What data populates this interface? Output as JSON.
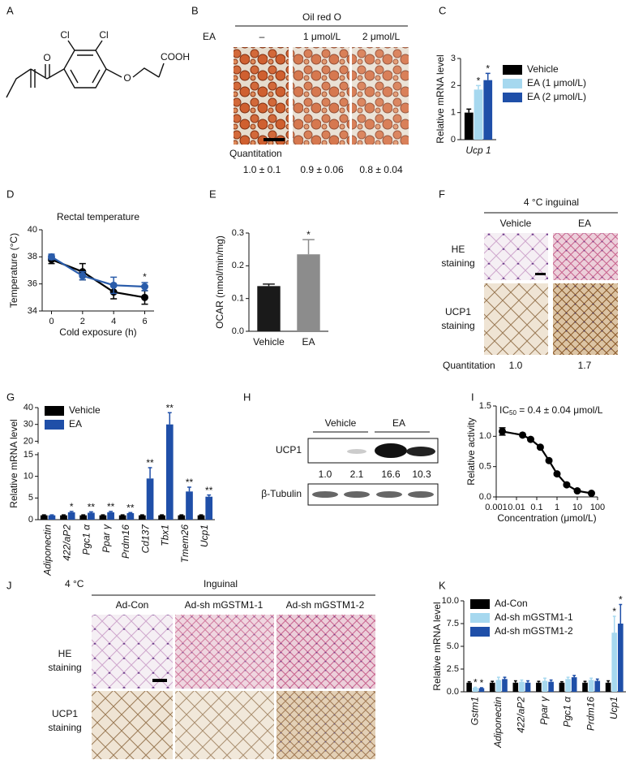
{
  "figure": {
    "letters": [
      "A",
      "B",
      "C",
      "D",
      "E",
      "F",
      "G",
      "H",
      "I",
      "J",
      "K"
    ],
    "A": {
      "atoms": [
        "O",
        "Cl",
        "Cl",
        "O",
        "COOH"
      ]
    },
    "B": {
      "header": "Oil red O",
      "row_label": "EA",
      "columns": [
        "–",
        "1 μmol/L",
        "2 μmol/L"
      ],
      "quant_label": "Quantitation",
      "quant": [
        "1.0 ± 0.1",
        "0.9 ± 0.06",
        "0.8 ± 0.04"
      ]
    },
    "F": {
      "header": "4 °C inguinal",
      "columns": [
        "Vehicle",
        "EA"
      ],
      "rows": [
        [
          "HE",
          "staining"
        ],
        [
          "UCP1",
          "staining"
        ]
      ],
      "quant_label": "Quantitation",
      "quant": [
        "1.0",
        "1.7"
      ]
    },
    "H": {
      "groups": [
        "Vehicle",
        "EA"
      ],
      "rows": [
        "UCP1",
        "β-Tubulin"
      ],
      "quant": [
        "1.0",
        "2.1",
        "16.6",
        "10.3"
      ]
    },
    "J": {
      "condition": "4 °C",
      "header": "Inguinal",
      "columns": [
        "Ad-Con",
        "Ad-sh mGSTM1-1",
        "Ad-sh mGSTM1-2"
      ],
      "rows": [
        [
          "HE",
          "staining"
        ],
        [
          "UCP1",
          "staining"
        ]
      ]
    }
  },
  "chart_data": [
    {
      "type": "bar",
      "ylabel": "Relative mRNA level",
      "categories": [
        "Ucp 1"
      ],
      "series": [
        {
          "name": "Vehicle",
          "color": "#000000",
          "values": [
            1.0
          ],
          "errors": [
            0.13
          ]
        },
        {
          "name": "EA (1 μmol/L)",
          "color": "#a6d8ef",
          "values": [
            1.85
          ],
          "errors": [
            0.15
          ],
          "stars": [
            "*"
          ]
        },
        {
          "name": "EA (2 μmol/L)",
          "color": "#1f4fa8",
          "values": [
            2.2
          ],
          "errors": [
            0.25
          ],
          "stars": [
            "*"
          ]
        }
      ],
      "ylim": [
        0,
        3
      ],
      "yticks": [
        0,
        1,
        2,
        3
      ],
      "legend": "right"
    },
    {
      "type": "line",
      "title": "Rectal temperature",
      "xlabel": "Cold exposure (h)",
      "ylabel": "Temperature (°C)",
      "x": [
        0,
        2,
        4,
        6
      ],
      "series": [
        {
          "color": "#000000",
          "values": [
            37.8,
            36.9,
            35.4,
            35.0
          ],
          "errors": [
            0.3,
            0.6,
            0.5,
            0.5
          ]
        },
        {
          "color": "#2a5caa",
          "values": [
            38.0,
            36.6,
            35.9,
            35.8
          ],
          "errors": [
            0.2,
            0.3,
            0.6,
            0.3
          ],
          "stars": [
            null,
            null,
            null,
            "*"
          ]
        }
      ],
      "xlim": [
        -0.6,
        6.6
      ],
      "xticks": [
        0,
        2,
        4,
        6
      ],
      "ylim": [
        34,
        40
      ],
      "yticks": [
        34,
        36,
        38,
        40
      ]
    },
    {
      "type": "bar",
      "ylabel": "OCAR (nmol/min/mg)",
      "categories": [
        "Vehicle",
        "EA"
      ],
      "values": [
        0.138,
        0.235
      ],
      "errors": [
        0.006,
        0.045
      ],
      "colors": [
        "#1a1a1a",
        "#8c8c8c"
      ],
      "stars": [
        null,
        "*"
      ],
      "ylim": [
        0,
        0.3
      ],
      "yticks": [
        {
          "value": 0,
          "label": "0.0"
        },
        0.1,
        0.2,
        0.3
      ]
    },
    {
      "type": "bar",
      "ylabel": "Relative mRNA level",
      "categories": [
        "Adiponectin",
        "422/aP2",
        "Pgc1 α",
        "Ppar γ",
        "Prdm16",
        "Cd137",
        "Tbx1",
        "Tmem26",
        "Ucp1"
      ],
      "series": [
        {
          "name": "Vehicle",
          "color": "#000000",
          "values": [
            1,
            1,
            1,
            1,
            1,
            1,
            1,
            1,
            1
          ],
          "errors": [
            0.1,
            0.1,
            0.1,
            0.1,
            0.1,
            0.1,
            0.1,
            0.1,
            0.1
          ]
        },
        {
          "name": "EA",
          "color": "#1f4fa8",
          "values": [
            1.0,
            1.7,
            1.6,
            1.7,
            1.5,
            9.5,
            30,
            6.5,
            5.3
          ],
          "errors": [
            0.1,
            0.2,
            0.2,
            0.2,
            0.15,
            2.5,
            7,
            1,
            0.4
          ],
          "stars": [
            null,
            "*",
            "**",
            "**",
            "**",
            "**",
            "**",
            "**",
            "**"
          ]
        }
      ],
      "ylim": [
        0,
        40
      ],
      "ybreak": [
        15,
        20
      ],
      "yticks": [
        0,
        5,
        10,
        15,
        20,
        30,
        40
      ],
      "legend": "upper left"
    },
    {
      "type": "line",
      "ylabel": "Relative activity",
      "xlabel": "Concentration (μmol/L)",
      "annotation": {
        "text": "IC",
        "sub": "50",
        "rest": " = 0.4 ± 0.04 μmol/L"
      },
      "xlog": true,
      "x": [
        0.002,
        0.02,
        0.05,
        0.15,
        0.4,
        1,
        3,
        10,
        50
      ],
      "values": [
        1.08,
        1.02,
        0.95,
        0.82,
        0.6,
        0.38,
        0.2,
        0.1,
        0.06
      ],
      "errors": [
        0.06,
        0.02,
        0.02,
        0.02,
        0.02,
        0.02,
        0.02,
        0.02,
        0.02
      ],
      "color": "#000000",
      "xlim": [
        0.001,
        100
      ],
      "xticks": [
        0.001,
        0.01,
        0.1,
        1,
        10,
        100
      ],
      "ylim": [
        0,
        1.5
      ],
      "yticks": [
        {
          "value": 0,
          "label": "0.0"
        },
        0.5,
        {
          "value": 1,
          "label": "1.0"
        },
        1.5
      ]
    },
    {
      "type": "bar",
      "ylabel": "Relative mRNA level",
      "categories": [
        "Gstm1",
        "Adiponectin",
        "422/aP2",
        "Ppar γ",
        "Pgc1 α",
        "Prdm16",
        "Ucp1"
      ],
      "series": [
        {
          "name": "Ad-Con",
          "color": "#000000",
          "values": [
            1.0,
            1.0,
            1.0,
            1.0,
            1.0,
            1.0,
            1.0
          ],
          "errors": [
            0.1,
            0.15,
            0.2,
            0.15,
            0.1,
            0.15,
            0.2
          ]
        },
        {
          "name": "Ad-sh mGSTM1-1",
          "color": "#a6d8ef",
          "values": [
            0.45,
            1.3,
            1.1,
            1.2,
            1.4,
            1.3,
            6.5
          ],
          "errors": [
            0.05,
            0.3,
            0.2,
            0.3,
            0.2,
            0.2,
            1.8
          ],
          "stars": [
            "*",
            null,
            null,
            null,
            null,
            null,
            "*"
          ]
        },
        {
          "name": "Ad-sh mGSTM1-2",
          "color": "#1f4fa8",
          "values": [
            0.4,
            1.4,
            1.0,
            1.1,
            1.6,
            1.2,
            7.5
          ],
          "errors": [
            0.05,
            0.2,
            0.2,
            0.2,
            0.2,
            0.2,
            2.1
          ],
          "stars": [
            "*",
            null,
            null,
            null,
            null,
            null,
            "*"
          ]
        }
      ],
      "ylim": [
        0,
        10
      ],
      "yticks": [
        {
          "value": 0,
          "label": "0.0"
        },
        2.5,
        {
          "value": 5,
          "label": "5.0"
        },
        7.5,
        {
          "value": 10,
          "label": "10.0"
        }
      ],
      "legend": "upper left"
    }
  ]
}
